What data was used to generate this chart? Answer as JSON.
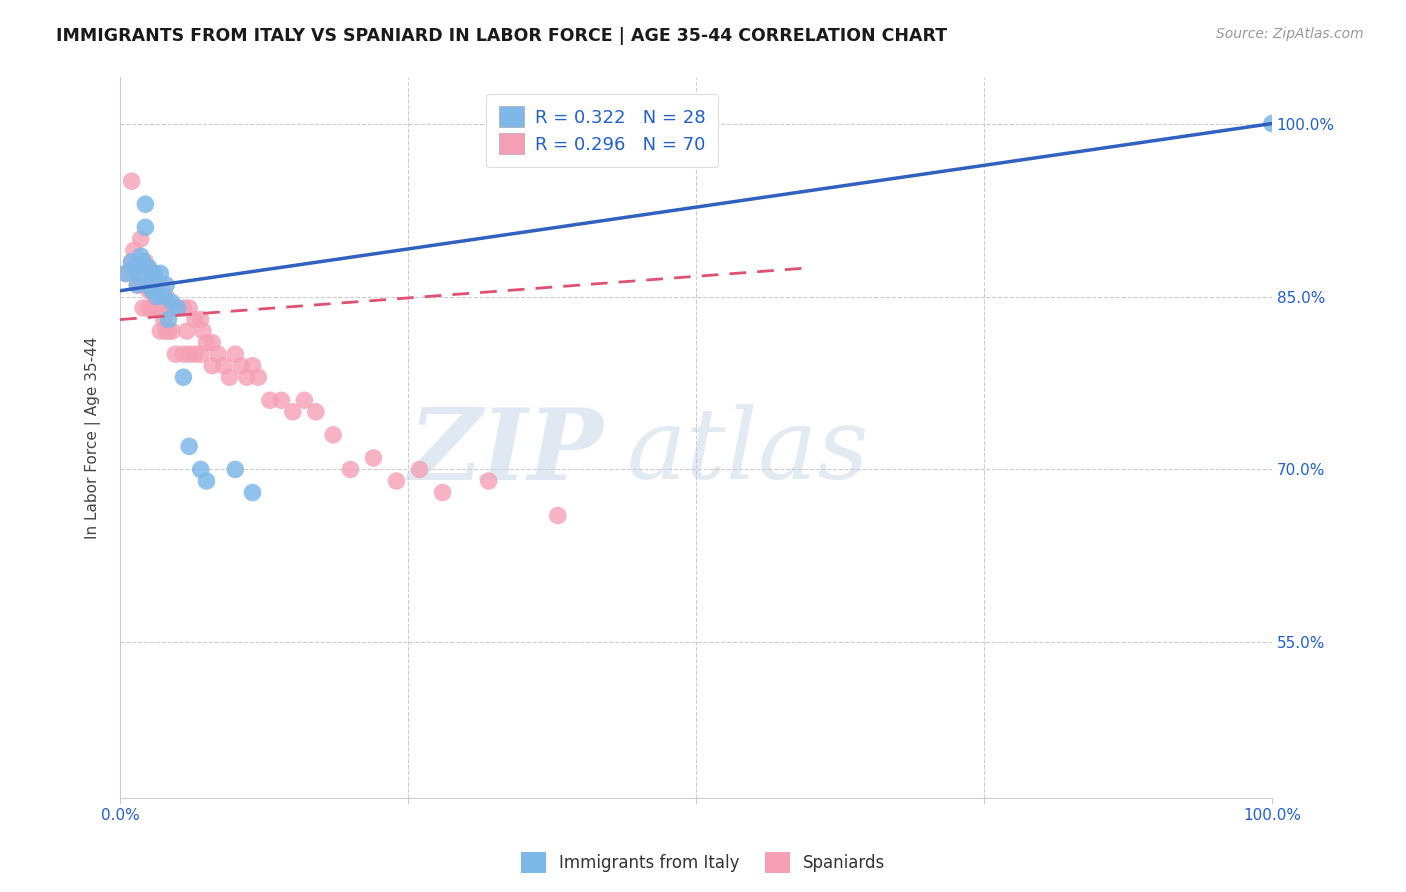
{
  "title": "IMMIGRANTS FROM ITALY VS SPANIARD IN LABOR FORCE | AGE 35-44 CORRELATION CHART",
  "source": "Source: ZipAtlas.com",
  "ylabel": "In Labor Force | Age 35-44",
  "ytick_labels": [
    "100.0%",
    "85.0%",
    "70.0%",
    "55.0%"
  ],
  "ytick_values": [
    1.0,
    0.85,
    0.7,
    0.55
  ],
  "xmin": 0.0,
  "xmax": 1.0,
  "ymin": 0.415,
  "ymax": 1.04,
  "legend_r_italy": "R = 0.322",
  "legend_n_italy": "N = 28",
  "legend_r_spain": "R = 0.296",
  "legend_n_spain": "N = 70",
  "italy_color": "#7eb8e8",
  "spain_color": "#f5a0b5",
  "italy_line_color": "#3060c0",
  "spain_line_color": "#e05070",
  "watermark_zip": "ZIP",
  "watermark_atlas": "atlas",
  "italy_x": [
    0.005,
    0.01,
    0.012,
    0.015,
    0.015,
    0.018,
    0.02,
    0.022,
    0.022,
    0.025,
    0.025,
    0.028,
    0.028,
    0.03,
    0.032,
    0.035,
    0.038,
    0.04,
    0.042,
    0.045,
    0.05,
    0.055,
    0.06,
    0.07,
    0.075,
    0.1,
    0.115,
    1.0
  ],
  "italy_y": [
    0.87,
    0.88,
    0.875,
    0.87,
    0.86,
    0.885,
    0.88,
    0.93,
    0.91,
    0.875,
    0.86,
    0.87,
    0.855,
    0.87,
    0.85,
    0.87,
    0.85,
    0.86,
    0.83,
    0.845,
    0.84,
    0.78,
    0.72,
    0.7,
    0.69,
    0.7,
    0.68,
    1.0
  ],
  "spain_x": [
    0.005,
    0.01,
    0.01,
    0.012,
    0.015,
    0.015,
    0.018,
    0.018,
    0.02,
    0.02,
    0.022,
    0.022,
    0.022,
    0.025,
    0.025,
    0.025,
    0.028,
    0.028,
    0.03,
    0.03,
    0.032,
    0.032,
    0.035,
    0.035,
    0.035,
    0.038,
    0.038,
    0.04,
    0.04,
    0.042,
    0.042,
    0.045,
    0.045,
    0.048,
    0.048,
    0.05,
    0.055,
    0.055,
    0.058,
    0.06,
    0.06,
    0.065,
    0.065,
    0.07,
    0.07,
    0.072,
    0.075,
    0.08,
    0.08,
    0.085,
    0.09,
    0.095,
    0.1,
    0.105,
    0.11,
    0.115,
    0.12,
    0.13,
    0.14,
    0.15,
    0.16,
    0.17,
    0.185,
    0.2,
    0.22,
    0.24,
    0.26,
    0.28,
    0.32,
    0.38
  ],
  "spain_y": [
    0.87,
    0.95,
    0.88,
    0.89,
    0.87,
    0.86,
    0.9,
    0.88,
    0.86,
    0.84,
    0.88,
    0.87,
    0.86,
    0.87,
    0.855,
    0.84,
    0.86,
    0.84,
    0.87,
    0.85,
    0.86,
    0.84,
    0.86,
    0.84,
    0.82,
    0.85,
    0.83,
    0.85,
    0.82,
    0.84,
    0.82,
    0.84,
    0.82,
    0.84,
    0.8,
    0.84,
    0.84,
    0.8,
    0.82,
    0.84,
    0.8,
    0.83,
    0.8,
    0.83,
    0.8,
    0.82,
    0.81,
    0.81,
    0.79,
    0.8,
    0.79,
    0.78,
    0.8,
    0.79,
    0.78,
    0.79,
    0.78,
    0.76,
    0.76,
    0.75,
    0.76,
    0.75,
    0.73,
    0.7,
    0.71,
    0.69,
    0.7,
    0.68,
    0.69,
    0.66
  ],
  "italy_line_x0": 0.0,
  "italy_line_y0": 0.855,
  "italy_line_x1": 1.0,
  "italy_line_y1": 1.0,
  "spain_line_x0": 0.0,
  "spain_line_y0": 0.83,
  "spain_line_x1": 0.6,
  "spain_line_y1": 0.875
}
